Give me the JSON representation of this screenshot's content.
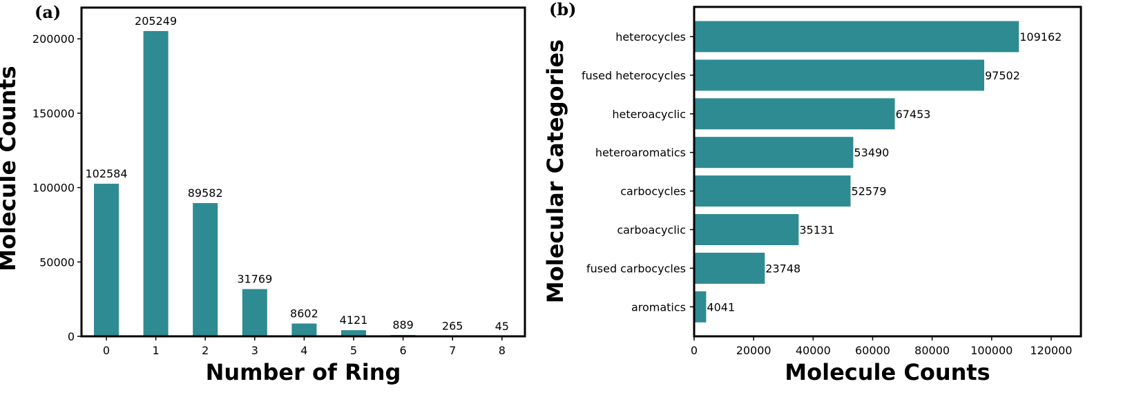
{
  "chart_data": [
    {
      "panel": "(a)",
      "type": "bar",
      "orientation": "vertical",
      "categories": [
        "0",
        "1",
        "2",
        "3",
        "4",
        "5",
        "6",
        "7",
        "8"
      ],
      "values": [
        102584,
        205249,
        89582,
        31769,
        8602,
        4121,
        889,
        265,
        45
      ],
      "data_labels": [
        "102584",
        "205249",
        "89582",
        "31769",
        "8602",
        "4121",
        "889",
        "265",
        "45"
      ],
      "xlabel": "Number of Ring",
      "ylabel": "Molecule Counts",
      "ylim": [
        0,
        221000
      ],
      "yticks": [
        0,
        50000,
        100000,
        150000,
        200000
      ],
      "ytick_labels": [
        "0",
        "50000",
        "100000",
        "150000",
        "200000"
      ],
      "grid": false,
      "color": "#2e8b92"
    },
    {
      "panel": "(b)",
      "type": "bar",
      "orientation": "horizontal",
      "categories": [
        "heterocycles",
        "fused heterocycles",
        "heteroacyclic",
        "heteroaromatics",
        "carbocycles",
        "carboacyclic",
        "fused carbocycles",
        "aromatics"
      ],
      "values": [
        109162,
        97502,
        67453,
        53490,
        52579,
        35131,
        23748,
        4041
      ],
      "data_labels": [
        "109162",
        "97502",
        "67453",
        "53490",
        "52579",
        "35131",
        "23748",
        "4041"
      ],
      "xlabel": "Molecule Counts",
      "ylabel": "Molecular Categories",
      "xlim": [
        0,
        130000
      ],
      "xticks": [
        0,
        20000,
        40000,
        60000,
        80000,
        100000,
        120000
      ],
      "xtick_labels": [
        "0",
        "20000",
        "40000",
        "60000",
        "80000",
        "100000",
        "120000"
      ],
      "grid": false,
      "color": "#2e8b92"
    }
  ]
}
